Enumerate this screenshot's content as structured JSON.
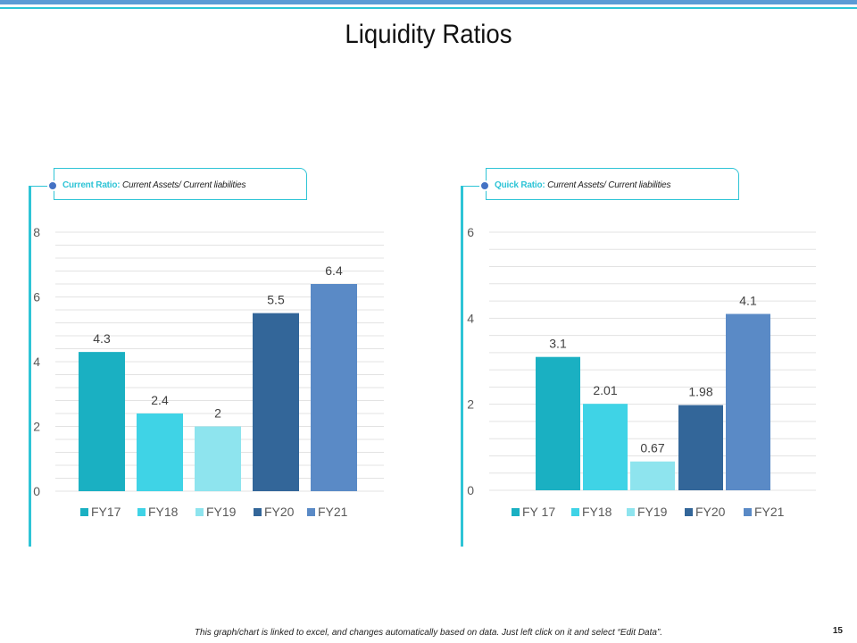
{
  "slide": {
    "title": "Liquidity Ratios",
    "footer": "This graph/chart is linked to excel, and changes automatically based on data. Just left click on it and select “Edit Data”.",
    "page_number": "15"
  },
  "colors": {
    "accent": "#2ec4d6",
    "dot": "#4472c4",
    "top_band": "#5b9bd5",
    "top_line": "#2ec4d6",
    "grid": "#e3e3e3",
    "series": [
      "#1ab0c2",
      "#3fd3e6",
      "#8ee4ee",
      "#336699",
      "#5a8ac6"
    ]
  },
  "panels": [
    {
      "label_key": "Current Ratio:",
      "label_desc": "Current Assets/ Current liabilities"
    },
    {
      "label_key": "Quick Ratio:",
      "label_desc": "Current Assets/ Current liabilities"
    }
  ],
  "chart_data": [
    {
      "type": "bar",
      "title": "Current Ratio",
      "categories": [
        "FY17",
        "FY18",
        "FY19",
        "FY20",
        "FY21"
      ],
      "values": [
        4.3,
        2.4,
        2,
        5.5,
        6.4
      ],
      "value_labels": [
        "4.3",
        "2.4",
        "2",
        "5.5",
        "6.4"
      ],
      "ylim": [
        0,
        8
      ],
      "yticks": [
        0,
        2,
        4,
        6,
        8
      ],
      "minor_step": 0.4,
      "legend_position": "bottom",
      "xlabel": "",
      "ylabel": ""
    },
    {
      "type": "bar",
      "title": "Quick Ratio",
      "categories": [
        "FY 17",
        "FY18",
        "FY19",
        "FY20",
        "FY21"
      ],
      "values": [
        3.1,
        2.01,
        0.67,
        1.98,
        4.1
      ],
      "value_labels": [
        "3.1",
        "2.01",
        "0.67",
        "1.98",
        "4.1"
      ],
      "ylim": [
        0,
        6
      ],
      "yticks": [
        0,
        2,
        4,
        6
      ],
      "minor_step": 0.4,
      "legend_position": "bottom",
      "xlabel": "",
      "ylabel": ""
    }
  ]
}
